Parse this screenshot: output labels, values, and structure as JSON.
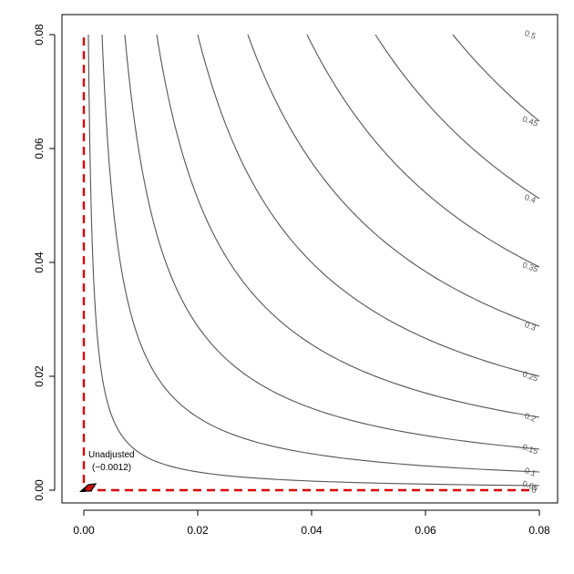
{
  "chart_data": {
    "type": "contour",
    "title": "",
    "xlabel": "",
    "ylabel": "",
    "xlim": [
      -0.004,
      0.0815
    ],
    "ylim": [
      -0.004,
      0.0815
    ],
    "x_ticks": [
      0.0,
      0.02,
      0.04,
      0.06,
      0.08
    ],
    "x_tick_labels": [
      "0.00",
      "0.02",
      "0.04",
      "0.06",
      "0.08"
    ],
    "y_ticks": [
      0.0,
      0.02,
      0.04,
      0.06,
      0.08
    ],
    "y_tick_labels": [
      "0.00",
      "0.02",
      "0.04",
      "0.06",
      "0.08"
    ],
    "contours": [
      {
        "level": 0.05,
        "label": "0.05"
      },
      {
        "level": 0.1,
        "label": "0.1"
      },
      {
        "level": 0.15,
        "label": "0.15"
      },
      {
        "level": 0.2,
        "label": "0.2"
      },
      {
        "level": 0.25,
        "label": "0.25"
      },
      {
        "level": 0.3,
        "label": "0.3"
      },
      {
        "level": 0.35,
        "label": "0.35"
      },
      {
        "level": 0.4,
        "label": "0.4"
      },
      {
        "level": 0.45,
        "label": "0.45"
      },
      {
        "level": 0.5,
        "label": "0.5"
      }
    ],
    "zero_contour": {
      "level": 0,
      "label": "0",
      "color": "#dd0000"
    },
    "point": {
      "x": 0.0,
      "y": 0.0,
      "label": "Unadjusted",
      "value_label": "(−0.0012)"
    },
    "colors": {
      "contour": "#555555",
      "zero_line": "#dd0000",
      "arrow_fill": "#cc1111"
    },
    "grid": false,
    "legend": "none"
  }
}
